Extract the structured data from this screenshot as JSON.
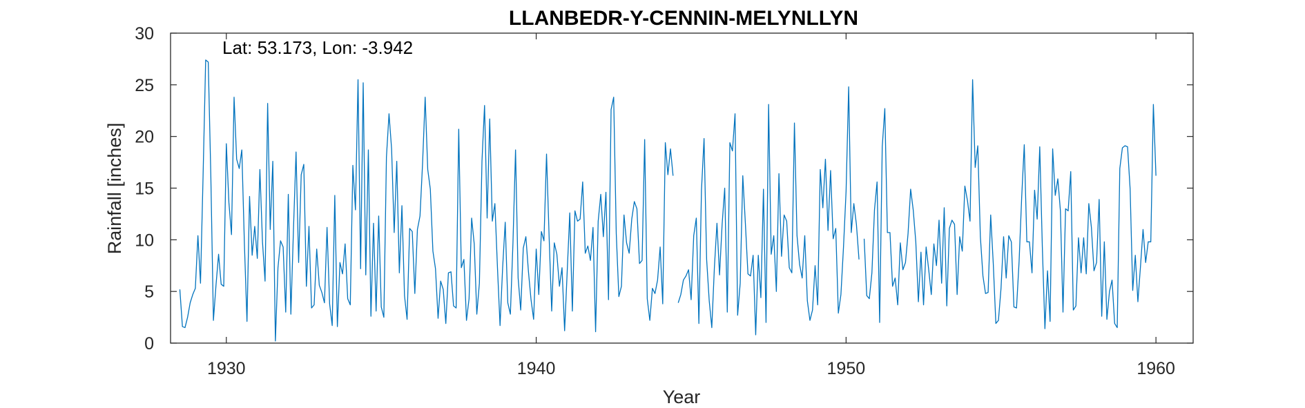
{
  "chart_data": {
    "type": "line",
    "title": "LLANBEDR-Y-CENNIN-MELYNLLYN",
    "annotation": "Lat: 53.173, Lon: -3.942",
    "xlabel": "Year",
    "ylabel": "Rainfall [inches]",
    "xlim": [
      1928.2,
      1961.2
    ],
    "ylim": [
      0,
      30
    ],
    "xticks": [
      1930,
      1940,
      1950,
      1960
    ],
    "xtick_labels": [
      "1930",
      "1940",
      "1950",
      "1960"
    ],
    "yticks": [
      0,
      5,
      10,
      15,
      20,
      25,
      30
    ],
    "ytick_labels": [
      "0",
      "5",
      "10",
      "15",
      "20",
      "25",
      "30"
    ],
    "grid": false,
    "color": "#0072BD",
    "series": [
      {
        "x_start": 1928.5,
        "x_step": 0.0833333,
        "values": [
          5.2,
          1.6,
          1.5,
          2.5,
          3.9,
          4.7,
          5.3,
          10.4,
          5.8,
          16.2,
          27.4,
          27.2,
          16.2,
          2.2,
          5.6,
          8.6,
          5.7,
          5.5,
          19.3,
          13.6,
          10.5,
          23.8,
          17.8,
          16.9,
          18.7,
          9.6,
          2.1,
          14.2,
          8.5,
          11.3,
          8.2,
          16.8,
          9.8,
          6.0,
          23.2,
          11.0,
          17.6,
          0.2,
          7.3,
          9.9,
          9.3,
          3.0,
          14.4,
          2.8,
          11.0,
          18.5,
          7.8,
          16.3,
          17.3,
          5.5,
          11.3,
          3.4,
          3.7,
          9.1,
          5.6,
          4.9,
          3.9,
          11.2,
          3.8,
          1.7,
          14.3,
          1.6,
          7.8,
          6.7,
          9.6,
          4.3,
          3.7,
          17.2,
          12.9,
          25.5,
          7.2,
          25.2,
          6.6,
          18.7,
          2.6,
          11.6,
          3.1,
          12.3,
          3.5,
          2.5,
          18.0,
          22.2,
          18.8,
          10.7,
          17.6,
          6.8,
          13.3,
          4.6,
          2.3,
          11.1,
          10.8,
          4.8,
          11.0,
          12.3,
          17.4,
          23.8,
          16.8,
          14.9,
          8.9,
          7.2,
          2.4,
          6.0,
          5.2,
          1.9,
          6.8,
          6.9,
          3.6,
          3.4,
          20.7,
          7.3,
          8.1,
          2.2,
          4.3,
          12.1,
          9.6,
          2.8,
          5.8,
          17.6,
          23.0,
          12.1,
          21.7,
          11.8,
          13.5,
          7.3,
          1.7,
          7.3,
          11.7,
          3.9,
          2.8,
          9.7,
          18.7,
          6.3,
          3.2,
          9.2,
          10.3,
          6.9,
          4.2,
          2.3,
          9.1,
          4.7,
          10.8,
          9.9,
          18.3,
          10.3,
          3.1,
          9.7,
          8.6,
          5.5,
          7.3,
          1.2,
          6.9,
          12.6,
          3.1,
          12.8,
          11.8,
          12.0,
          15.6,
          8.7,
          9.4,
          8.0,
          11.2,
          1.1,
          11.8,
          14.4,
          10.3,
          14.6,
          4.2,
          22.6,
          23.8,
          10.6,
          4.5,
          5.5,
          12.4,
          9.7,
          8.7,
          12.0,
          13.7,
          13.0,
          7.7,
          8.0,
          19.7,
          4.3,
          2.2,
          5.3,
          4.8,
          6.1,
          9.3,
          3.8,
          19.4,
          16.3,
          18.8,
          16.2,
          null,
          3.9,
          4.7,
          6.1,
          6.5,
          7.1,
          4.2,
          10.4,
          12.1,
          1.9,
          14.8,
          19.8,
          8.1,
          4.1,
          1.5,
          7.3,
          11.6,
          6.6,
          11.5,
          15.0,
          3.0,
          19.4,
          18.6,
          22.2,
          2.7,
          5.8,
          16.2,
          11.6,
          6.7,
          6.5,
          8.5,
          0.8,
          8.5,
          4.4,
          14.9,
          2.0,
          23.1,
          8.6,
          10.4,
          5.0,
          16.4,
          8.4,
          12.4,
          11.8,
          7.3,
          6.8,
          21.3,
          10.4,
          7.6,
          6.3,
          10.4,
          4.1,
          2.2,
          3.2,
          7.5,
          3.7,
          16.8,
          13.1,
          17.8,
          10.9,
          16.7,
          10.1,
          11.1,
          2.9,
          4.7,
          9.3,
          14.7,
          24.8,
          10.7,
          13.5,
          11.5,
          8.1,
          null,
          10.1,
          4.6,
          4.3,
          6.8,
          12.9,
          15.6,
          2.0,
          19.0,
          22.7,
          10.7,
          10.7,
          5.5,
          6.3,
          3.7,
          9.7,
          7.1,
          7.8,
          10.6,
          14.9,
          12.9,
          9.8,
          4.0,
          8.8,
          3.7,
          9.3,
          7.1,
          4.7,
          9.6,
          7.5,
          11.9,
          5.8,
          13.1,
          3.6,
          11.1,
          11.9,
          11.5,
          4.7,
          10.3,
          8.9,
          15.2,
          13.8,
          11.8,
          25.5,
          17.0,
          19.1,
          10.3,
          6.5,
          4.8,
          4.9,
          12.4,
          7.7,
          1.9,
          2.2,
          5.3,
          10.3,
          6.3,
          10.4,
          9.8,
          3.5,
          3.4,
          7.9,
          14.1,
          19.2,
          9.8,
          9.8,
          6.8,
          14.8,
          12.0,
          19.0,
          9.3,
          1.4,
          7.0,
          2.1,
          18.8,
          14.3,
          15.9,
          12.8,
          3.0,
          13.0,
          12.8,
          16.6,
          3.2,
          3.6,
          10.2,
          6.8,
          10.2,
          6.7,
          13.5,
          11.2,
          7.0,
          7.8,
          13.9,
          2.6,
          9.8,
          2.3,
          5.0,
          6.1,
          1.9,
          1.5,
          16.9,
          18.9,
          19.1,
          19.0,
          14.9,
          5.1,
          8.5,
          4.0,
          7.4,
          11.0,
          7.8,
          9.8,
          9.8,
          23.1,
          16.2
        ]
      }
    ]
  }
}
